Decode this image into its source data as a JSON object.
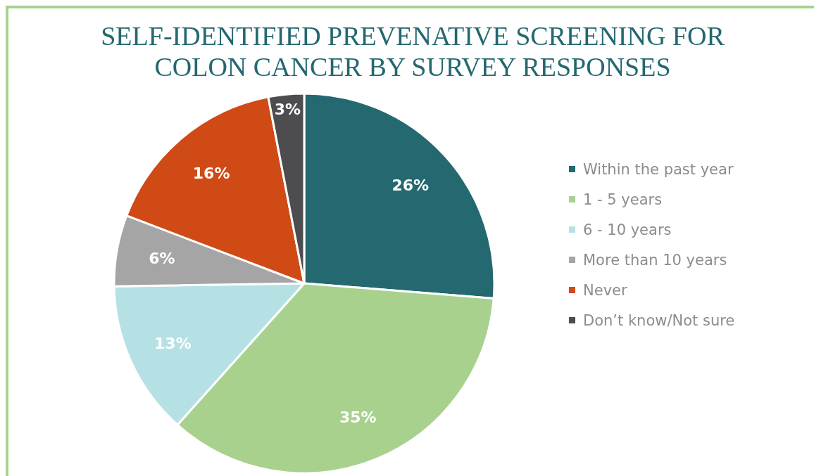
{
  "chart_data": {
    "type": "pie",
    "title": "SELF-IDENTIFIED PREVENATIVE SCREENING FOR COLON CANCER BY SURVEY RESPONSES",
    "categories": [
      "Within the past year",
      "1 - 5 years",
      "6 - 10 years",
      "More than 10 years",
      "Never",
      "Don’t know/Not sure"
    ],
    "values": [
      26,
      35,
      13,
      6,
      16,
      3
    ],
    "colors": [
      "#246870",
      "#a9d18e",
      "#b5e1e5",
      "#a5a5a5",
      "#d04a15",
      "#4d4d4f"
    ],
    "value_labels": [
      "26%",
      "35%",
      "13%",
      "6%",
      "16%",
      "3%"
    ],
    "legend": "right"
  }
}
